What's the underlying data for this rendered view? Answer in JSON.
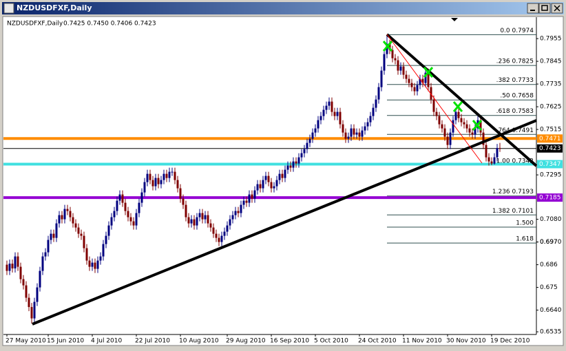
{
  "chart_data": {
    "type": "candlestick",
    "title": "NZDUSDFXF,Daily",
    "info": "0.7425 0.7450 0.7406 0.7423",
    "up_color": "#00007f",
    "down_color": "#7f0000",
    "ylim": [
      0.6522,
      0.8042
    ],
    "yticks": [
      0.7955,
      0.7845,
      0.7735,
      0.7625,
      0.7515,
      0.7295,
      {
        "value": 0.708,
        "label": "0.7080"
      },
      0.697,
      {
        "value": 0.697,
        "label": "0.6970"
      },
      0.686,
      0.675,
      {
        "value": 0.664,
        "label": "0.6640"
      },
      0.6535
    ],
    "categories": [
      "27 May 2010",
      null,
      null,
      null,
      null,
      null,
      null,
      null,
      null,
      null,
      null,
      null,
      null,
      null,
      null,
      "15 Jun 2010",
      null,
      null,
      null,
      null,
      null,
      null,
      null,
      null,
      null,
      null,
      null,
      null,
      null,
      null,
      null,
      "4 Jul 2010",
      null,
      null,
      null,
      null,
      null,
      null,
      null,
      null,
      null,
      null,
      null,
      null,
      null,
      null,
      null,
      "22 Jul 2010",
      null,
      null,
      null,
      null,
      null,
      null,
      null,
      null,
      null,
      null,
      null,
      null,
      null,
      null,
      null,
      "10 Aug 2010",
      null,
      null,
      null,
      null,
      null,
      null,
      null,
      null,
      null,
      null,
      null,
      null,
      null,
      null,
      null,
      null,
      "29 Aug 2010",
      null,
      null,
      null,
      null,
      null,
      null,
      null,
      null,
      null,
      null,
      null,
      null,
      null,
      null,
      null,
      "16 Sep 2010",
      null,
      null,
      null,
      null,
      null,
      null,
      null,
      null,
      null,
      null,
      null,
      null,
      null,
      null,
      null,
      "5 Oct 2010",
      null,
      null,
      null,
      null,
      null,
      null,
      null,
      null,
      null,
      null,
      null,
      null,
      null,
      null,
      null,
      "24 Oct 2010",
      null,
      null,
      null,
      null,
      null,
      null,
      null,
      null,
      null,
      null,
      null,
      null,
      null,
      null,
      null,
      "11 Nov 2010",
      null,
      null,
      null,
      null,
      null,
      null,
      null,
      null,
      null,
      null,
      null,
      null,
      null,
      null,
      null,
      "30 Nov 2010",
      null,
      null,
      null,
      null,
      null,
      null,
      null,
      null,
      null,
      null,
      null,
      null,
      null,
      null,
      null,
      "19 Dec 2010",
      null,
      null,
      null
    ],
    "candles": [
      [
        0.686,
        0.688,
        0.681,
        0.683
      ],
      [
        0.683,
        0.6885,
        0.681,
        0.6865
      ],
      [
        0.6865,
        0.6885,
        0.6822,
        0.6842
      ],
      [
        0.6842,
        0.692,
        0.6822,
        0.69
      ],
      [
        0.69,
        0.692,
        0.683,
        0.685
      ],
      [
        0.685,
        0.687,
        0.677,
        0.679
      ],
      [
        0.679,
        0.681,
        0.674,
        0.676
      ],
      [
        0.676,
        0.678,
        0.668,
        0.67
      ],
      [
        0.67,
        0.672,
        0.6635,
        0.6655
      ],
      [
        0.6655,
        0.6675,
        0.6575,
        0.66
      ],
      [
        0.66,
        0.67,
        0.658,
        0.668
      ],
      [
        0.668,
        0.677,
        0.666,
        0.675
      ],
      [
        0.675,
        0.685,
        0.673,
        0.683
      ],
      [
        0.683,
        0.692,
        0.681,
        0.69
      ],
      [
        0.69,
        0.694,
        0.688,
        0.692
      ],
      [
        0.692,
        0.7,
        0.69,
        0.698
      ],
      [
        0.698,
        0.703,
        0.696,
        0.701
      ],
      [
        0.701,
        0.703,
        0.697,
        0.699
      ],
      [
        0.699,
        0.708,
        0.697,
        0.706
      ],
      [
        0.706,
        0.712,
        0.704,
        0.71
      ],
      [
        0.71,
        0.712,
        0.706,
        0.708
      ],
      [
        0.708,
        0.715,
        0.706,
        0.713
      ],
      [
        0.713,
        0.715,
        0.71,
        0.712
      ],
      [
        0.712,
        0.714,
        0.707,
        0.709
      ],
      [
        0.709,
        0.711,
        0.704,
        0.706
      ],
      [
        0.706,
        0.708,
        0.702,
        0.704
      ],
      [
        0.704,
        0.706,
        0.699,
        0.701
      ],
      [
        0.701,
        0.703,
        0.698,
        0.7
      ],
      [
        0.7,
        0.702,
        0.692,
        0.694
      ],
      [
        0.694,
        0.696,
        0.686,
        0.688
      ],
      [
        0.688,
        0.69,
        0.683,
        0.685
      ],
      [
        0.685,
        0.689,
        0.683,
        0.687
      ],
      [
        0.687,
        0.689,
        0.682,
        0.684
      ],
      [
        0.684,
        0.69,
        0.682,
        0.688
      ],
      [
        0.688,
        0.692,
        0.686,
        0.69
      ],
      [
        0.69,
        0.698,
        0.688,
        0.696
      ],
      [
        0.696,
        0.702,
        0.694,
        0.7
      ],
      [
        0.7,
        0.707,
        0.698,
        0.705
      ],
      [
        0.705,
        0.711,
        0.703,
        0.709
      ],
      [
        0.709,
        0.714,
        0.707,
        0.712
      ],
      [
        0.712,
        0.719,
        0.71,
        0.717
      ],
      [
        0.717,
        0.722,
        0.715,
        0.72
      ],
      [
        0.72,
        0.722,
        0.714,
        0.716
      ],
      [
        0.716,
        0.718,
        0.71,
        0.712
      ],
      [
        0.712,
        0.714,
        0.707,
        0.709
      ],
      [
        0.709,
        0.711,
        0.705,
        0.707
      ],
      [
        0.707,
        0.709,
        0.703,
        0.705
      ],
      [
        0.705,
        0.713,
        0.703,
        0.711
      ],
      [
        0.711,
        0.718,
        0.709,
        0.716
      ],
      [
        0.716,
        0.723,
        0.714,
        0.721
      ],
      [
        0.721,
        0.728,
        0.719,
        0.726
      ],
      [
        0.726,
        0.732,
        0.724,
        0.73
      ],
      [
        0.73,
        0.732,
        0.725,
        0.727
      ],
      [
        0.727,
        0.729,
        0.722,
        0.724
      ],
      [
        0.724,
        0.73,
        0.722,
        0.728
      ],
      [
        0.728,
        0.73,
        0.723,
        0.725
      ],
      [
        0.725,
        0.729,
        0.723,
        0.727
      ],
      [
        0.727,
        0.732,
        0.725,
        0.73
      ],
      [
        0.73,
        0.732,
        0.726,
        0.728
      ],
      [
        0.728,
        0.733,
        0.726,
        0.731
      ],
      [
        0.731,
        0.733,
        0.729,
        0.731
      ],
      [
        0.731,
        0.733,
        0.725,
        0.727
      ],
      [
        0.727,
        0.729,
        0.721,
        0.723
      ],
      [
        0.723,
        0.725,
        0.716,
        0.718
      ],
      [
        0.718,
        0.72,
        0.713,
        0.715
      ],
      [
        0.715,
        0.717,
        0.707,
        0.709
      ],
      [
        0.709,
        0.711,
        0.704,
        0.706
      ],
      [
        0.706,
        0.71,
        0.704,
        0.708
      ],
      [
        0.708,
        0.71,
        0.703,
        0.705
      ],
      [
        0.705,
        0.711,
        0.703,
        0.709
      ],
      [
        0.709,
        0.713,
        0.707,
        0.711
      ],
      [
        0.711,
        0.713,
        0.706,
        0.708
      ],
      [
        0.708,
        0.712,
        0.706,
        0.71
      ],
      [
        0.71,
        0.712,
        0.704,
        0.706
      ],
      [
        0.706,
        0.708,
        0.702,
        0.704
      ],
      [
        0.704,
        0.706,
        0.699,
        0.701
      ],
      [
        0.701,
        0.703,
        0.697,
        0.699
      ],
      [
        0.699,
        0.701,
        0.695,
        0.697
      ],
      [
        0.697,
        0.702,
        0.695,
        0.7
      ],
      [
        0.7,
        0.704,
        0.698,
        0.702
      ],
      [
        0.702,
        0.707,
        0.7,
        0.705
      ],
      [
        0.705,
        0.71,
        0.703,
        0.708
      ],
      [
        0.708,
        0.712,
        0.706,
        0.71
      ],
      [
        0.71,
        0.714,
        0.708,
        0.712
      ],
      [
        0.712,
        0.714,
        0.709,
        0.711
      ],
      [
        0.711,
        0.717,
        0.709,
        0.715
      ],
      [
        0.715,
        0.719,
        0.713,
        0.717
      ],
      [
        0.717,
        0.719,
        0.714,
        0.716
      ],
      [
        0.716,
        0.722,
        0.714,
        0.72
      ],
      [
        0.72,
        0.722,
        0.716,
        0.718
      ],
      [
        0.718,
        0.724,
        0.716,
        0.722
      ],
      [
        0.722,
        0.727,
        0.72,
        0.725
      ],
      [
        0.725,
        0.727,
        0.721,
        0.723
      ],
      [
        0.723,
        0.729,
        0.721,
        0.727
      ],
      [
        0.727,
        0.731,
        0.725,
        0.729
      ],
      [
        0.729,
        0.731,
        0.724,
        0.726
      ],
      [
        0.726,
        0.728,
        0.721,
        0.723
      ],
      [
        0.723,
        0.726,
        0.721,
        0.724
      ],
      [
        0.724,
        0.729,
        0.722,
        0.727
      ],
      [
        0.727,
        0.732,
        0.725,
        0.73
      ],
      [
        0.73,
        0.732,
        0.726,
        0.728
      ],
      [
        0.728,
        0.734,
        0.726,
        0.732
      ],
      [
        0.732,
        0.736,
        0.73,
        0.734
      ],
      [
        0.734,
        0.736,
        0.731,
        0.733
      ],
      [
        0.733,
        0.738,
        0.731,
        0.736
      ],
      [
        0.736,
        0.738,
        0.733,
        0.735
      ],
      [
        0.735,
        0.74,
        0.733,
        0.738
      ],
      [
        0.738,
        0.742,
        0.736,
        0.74
      ],
      [
        0.74,
        0.744,
        0.738,
        0.742
      ],
      [
        0.742,
        0.747,
        0.74,
        0.745
      ],
      [
        0.745,
        0.749,
        0.743,
        0.747
      ],
      [
        0.747,
        0.752,
        0.745,
        0.75
      ],
      [
        0.75,
        0.754,
        0.748,
        0.752
      ],
      [
        0.752,
        0.758,
        0.75,
        0.756
      ],
      [
        0.756,
        0.76,
        0.754,
        0.758
      ],
      [
        0.758,
        0.763,
        0.756,
        0.761
      ],
      [
        0.761,
        0.765,
        0.759,
        0.763
      ],
      [
        0.763,
        0.767,
        0.761,
        0.765
      ],
      [
        0.765,
        0.767,
        0.758,
        0.76
      ],
      [
        0.76,
        0.762,
        0.756,
        0.758
      ],
      [
        0.758,
        0.762,
        0.756,
        0.76
      ],
      [
        0.76,
        0.762,
        0.752,
        0.754
      ],
      [
        0.754,
        0.756,
        0.748,
        0.75
      ],
      [
        0.75,
        0.752,
        0.745,
        0.747
      ],
      [
        0.747,
        0.75,
        0.745,
        0.748
      ],
      [
        0.748,
        0.754,
        0.746,
        0.752
      ],
      [
        0.752,
        0.754,
        0.747,
        0.749
      ],
      [
        0.749,
        0.752,
        0.747,
        0.75
      ],
      [
        0.75,
        0.752,
        0.746,
        0.748
      ],
      [
        0.748,
        0.753,
        0.746,
        0.751
      ],
      [
        0.751,
        0.755,
        0.749,
        0.753
      ],
      [
        0.753,
        0.757,
        0.751,
        0.755
      ],
      [
        0.755,
        0.76,
        0.753,
        0.758
      ],
      [
        0.758,
        0.764,
        0.756,
        0.762
      ],
      [
        0.762,
        0.768,
        0.76,
        0.766
      ],
      [
        0.766,
        0.774,
        0.764,
        0.772
      ],
      [
        0.772,
        0.782,
        0.77,
        0.78
      ],
      [
        0.78,
        0.79,
        0.778,
        0.788
      ],
      [
        0.788,
        0.7974,
        0.786,
        0.793
      ],
      [
        0.793,
        0.795,
        0.788,
        0.79
      ],
      [
        0.79,
        0.792,
        0.784,
        0.786
      ],
      [
        0.786,
        0.788,
        0.783,
        0.785
      ],
      [
        0.785,
        0.787,
        0.778,
        0.78
      ],
      [
        0.78,
        0.784,
        0.778,
        0.782
      ],
      [
        0.782,
        0.784,
        0.776,
        0.778
      ],
      [
        0.778,
        0.78,
        0.774,
        0.776
      ],
      [
        0.776,
        0.778,
        0.772,
        0.774
      ],
      [
        0.774,
        0.776,
        0.77,
        0.772
      ],
      [
        0.772,
        0.774,
        0.768,
        0.77
      ],
      [
        0.77,
        0.775,
        0.768,
        0.773
      ],
      [
        0.773,
        0.778,
        0.771,
        0.776
      ],
      [
        0.776,
        0.778,
        0.772,
        0.774
      ],
      [
        0.774,
        0.781,
        0.772,
        0.779
      ],
      [
        0.779,
        0.781,
        0.77,
        0.772
      ],
      [
        0.772,
        0.774,
        0.764,
        0.766
      ],
      [
        0.766,
        0.768,
        0.758,
        0.76
      ],
      [
        0.76,
        0.762,
        0.756,
        0.758
      ],
      [
        0.758,
        0.76,
        0.752,
        0.754
      ],
      [
        0.754,
        0.756,
        0.75,
        0.752
      ],
      [
        0.752,
        0.754,
        0.746,
        0.748
      ],
      [
        0.748,
        0.75,
        0.742,
        0.744
      ],
      [
        0.744,
        0.752,
        0.742,
        0.75
      ],
      [
        0.75,
        0.758,
        0.748,
        0.756
      ],
      [
        0.756,
        0.762,
        0.754,
        0.76
      ],
      [
        0.76,
        0.762,
        0.755,
        0.757
      ],
      [
        0.757,
        0.759,
        0.753,
        0.755
      ],
      [
        0.755,
        0.757,
        0.752,
        0.754
      ],
      [
        0.754,
        0.756,
        0.75,
        0.752
      ],
      [
        0.752,
        0.754,
        0.748,
        0.75
      ],
      [
        0.75,
        0.752,
        0.747,
        0.749
      ],
      [
        0.749,
        0.754,
        0.747,
        0.752
      ],
      [
        0.752,
        0.758,
        0.75,
        0.756
      ],
      [
        0.756,
        0.758,
        0.748,
        0.75
      ],
      [
        0.75,
        0.752,
        0.742,
        0.744
      ],
      [
        0.744,
        0.746,
        0.736,
        0.738
      ],
      [
        0.738,
        0.74,
        0.734,
        0.736
      ],
      [
        0.736,
        0.738,
        0.7342,
        0.735
      ],
      [
        0.735,
        0.74,
        0.7345,
        0.738
      ],
      [
        0.738,
        0.7445,
        0.736,
        0.7425
      ],
      [
        0.7425,
        0.745,
        0.7406,
        0.7423
      ]
    ],
    "hlines": [
      {
        "value": 0.7471,
        "color": "#ff8c00",
        "width": 4
      },
      {
        "value": 0.7347,
        "color": "#40e0e0",
        "width": 4
      },
      {
        "value": 0.7185,
        "color": "#9400d3",
        "width": 4
      },
      {
        "value": 0.7423,
        "color": "#000000",
        "width": 1
      }
    ],
    "fib_levels": [
      {
        "text": "0.0 0.7974",
        "price": 0.7974
      },
      {
        "text": ".236 0.7825",
        "price": 0.7825
      },
      {
        "text": ".382 0.7733",
        "price": 0.7733
      },
      {
        "text": ".50 0.7658",
        "price": 0.7658
      },
      {
        "text": ".618 0.7583",
        "price": 0.7583
      },
      {
        "text": ".764 0.7491",
        "price": 0.7491
      },
      {
        "text": "1.00 0.7342",
        "price": 0.7342
      },
      {
        "text": "1.236 0.7193",
        "price": 0.7193
      },
      {
        "text": "1.382 0.7101",
        "price": 0.7101
      },
      {
        "text": "1.500",
        "price": 0.7042
      },
      {
        "text": "1.618",
        "price": 0.6965
      }
    ],
    "fib_color": "#2f4f4f"
  }
}
